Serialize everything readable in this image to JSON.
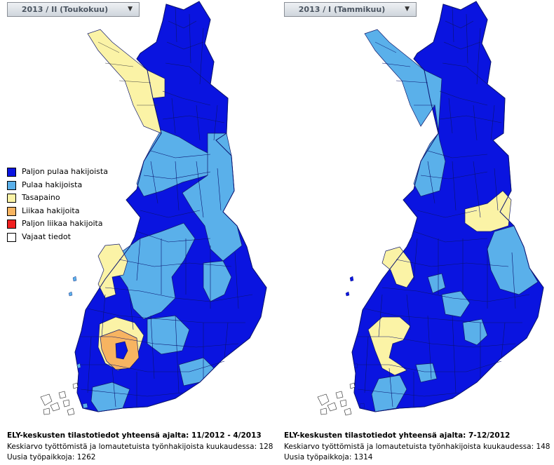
{
  "colors": {
    "paljon_pulaa": "#0a14e0",
    "pulaa": "#5ab0ea",
    "tasapaino": "#fbf3a6",
    "liikaa": "#f7b461",
    "paljon_liikaa": "#f02020",
    "vajaat": "#ffffff",
    "border": "#10186a"
  },
  "panels": [
    {
      "period_label": "2013 / II (Toukokuu)",
      "summary_heading": "ELY-keskusten tilastotiedot yhteensä ajalta: 11/2012 - 4/2013",
      "avg_line": "Keskiarvo työttömistä ja lomautetuista työnhakijoista kuukaudessa: 128",
      "new_jobs_line": "Uusia työpaikkoja: 1262"
    },
    {
      "period_label": "2013 / I (Tammikuu)",
      "summary_heading": "ELY-keskusten tilastotiedot yhteensä ajalta: 7-12/2012",
      "avg_line": "Keskiarvo työttömistä ja lomautetuista työnhakijoista kuukaudessa: 148",
      "new_jobs_line": "Uusia työpaikkoja: 1314"
    }
  ],
  "legend": [
    {
      "label": "Paljon pulaa hakijoista",
      "color": "#0a14e0"
    },
    {
      "label": "Pulaa hakijoista",
      "color": "#5ab0ea"
    },
    {
      "label": "Tasapaino",
      "color": "#fbf3a6"
    },
    {
      "label": "Liikaa hakijoita",
      "color": "#f7b461"
    },
    {
      "label": "Paljon liikaa hakijoita",
      "color": "#f02020"
    },
    {
      "label": "Vajaat tiedot",
      "color": "#ffffff"
    }
  ]
}
